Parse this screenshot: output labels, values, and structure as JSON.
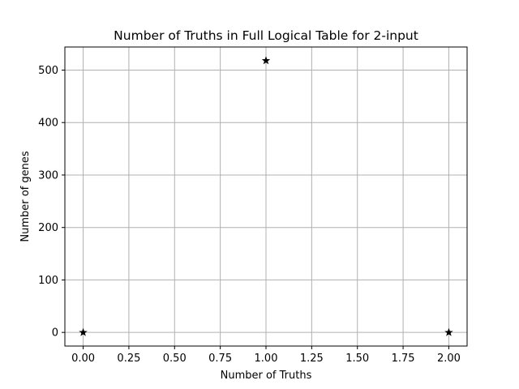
{
  "chart_data": {
    "type": "scatter",
    "title": "Number of Truths in Full Logical Table for 2-input",
    "xlabel": "Number of Truths",
    "ylabel": "Number of genes",
    "xlim": [
      -0.1,
      2.1
    ],
    "ylim": [
      -26,
      544
    ],
    "xticks": [
      "0.00",
      "0.25",
      "0.50",
      "0.75",
      "1.00",
      "1.25",
      "1.50",
      "1.75",
      "2.00"
    ],
    "yticks": [
      "0",
      "100",
      "200",
      "300",
      "400",
      "500"
    ],
    "grid": true,
    "marker": "star",
    "marker_color": "#000000",
    "grid_color": "#b0b0b0",
    "series": [
      {
        "x": [
          0,
          1,
          2
        ],
        "y": [
          0,
          518,
          0
        ]
      }
    ]
  }
}
